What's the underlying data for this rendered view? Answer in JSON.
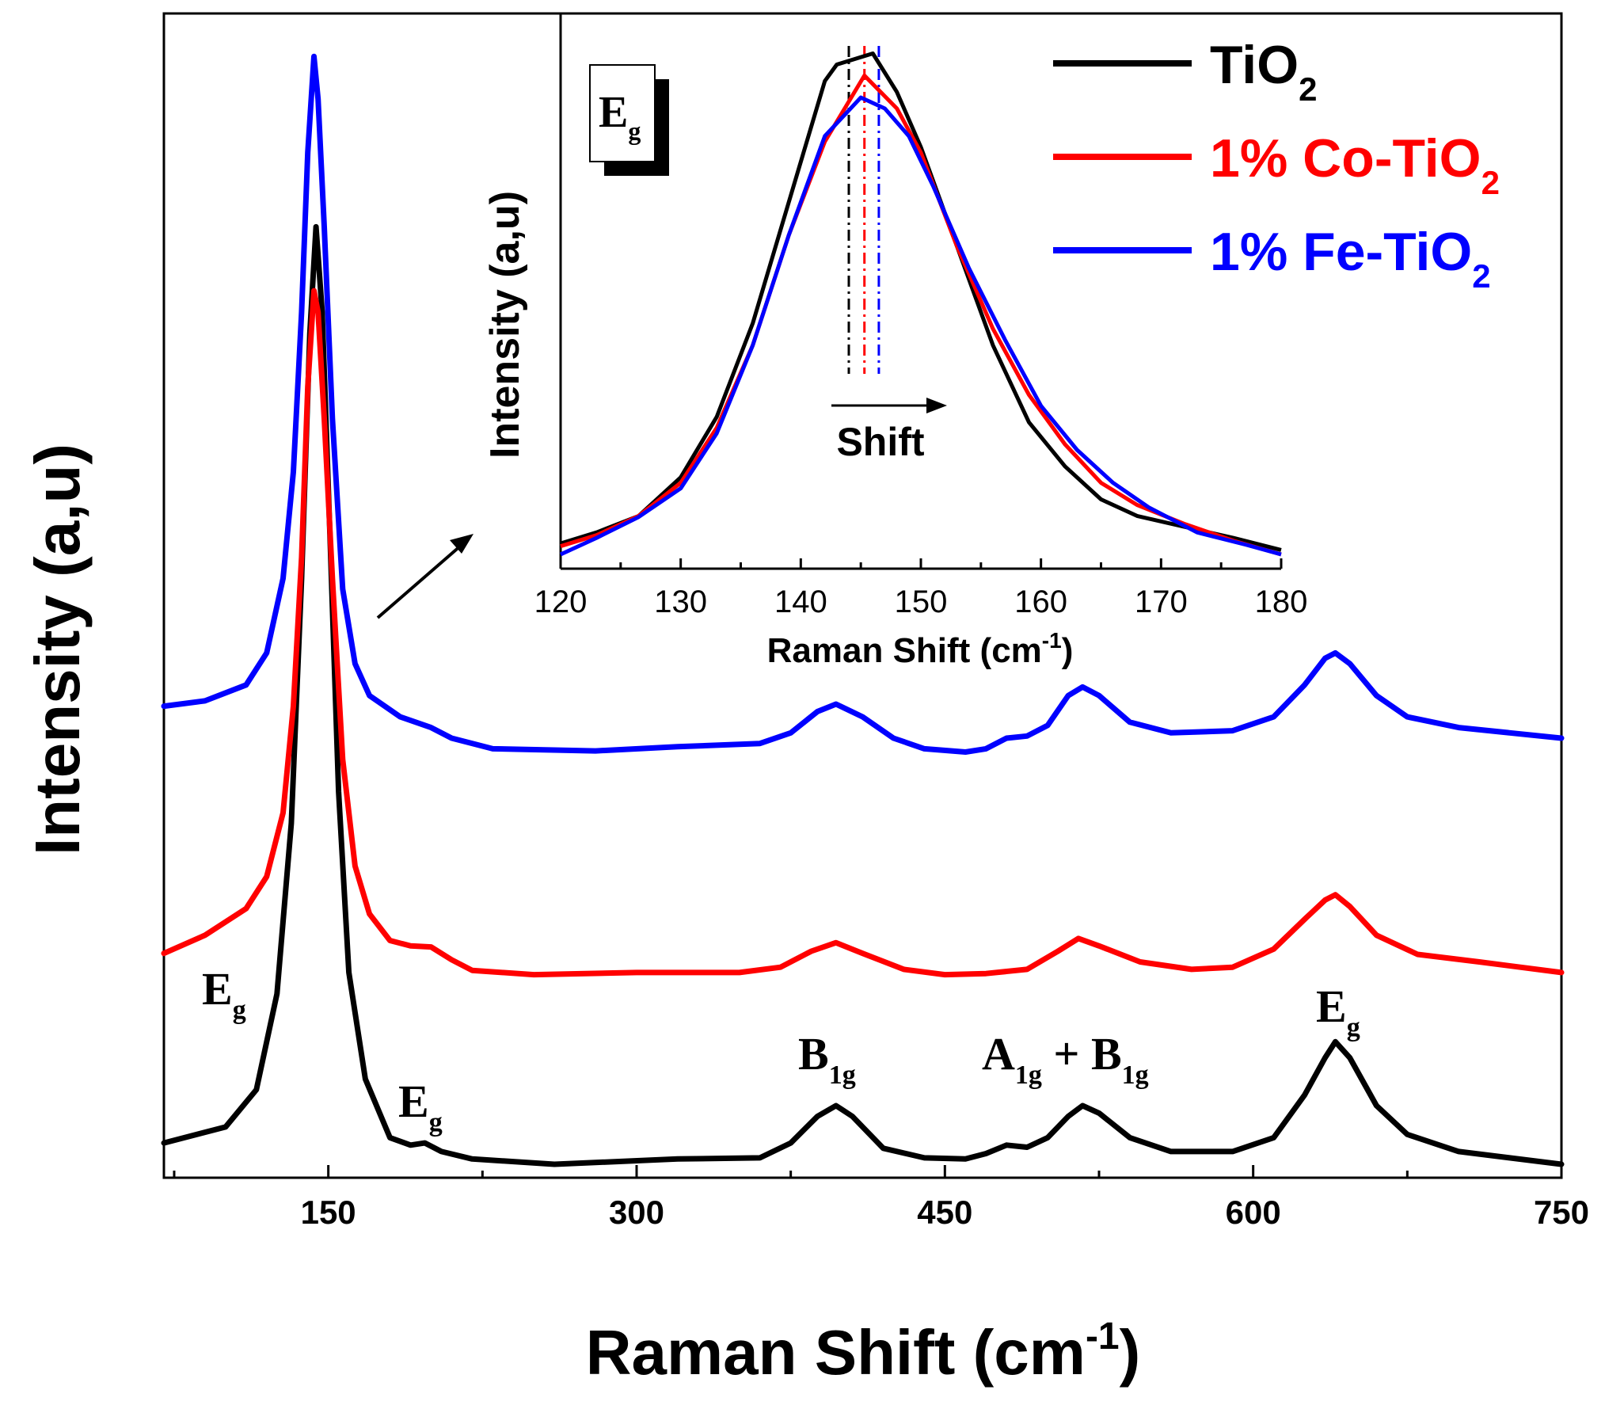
{
  "chart_data": [
    {
      "type": "line",
      "xlabel": "Raman Shift (cm",
      "xlabel_sup": "-1",
      "xlabel_end": ")",
      "ylabel": "Intensity (a,u)",
      "xlim": [
        70,
        750
      ],
      "xticks": [
        150,
        300,
        450,
        600,
        750
      ],
      "x_minor_step": 75,
      "yticks": [],
      "grid": false,
      "legend": {
        "position": "top-right",
        "entries": [
          {
            "base": "TiO",
            "sub": "2",
            "color": "#000000"
          },
          {
            "base": "1% Co-TiO",
            "sub": "2",
            "color": "#ff0000"
          },
          {
            "base": "1% Fe-TiO",
            "sub": "2",
            "color": "#0000ff"
          }
        ]
      },
      "annotations": [
        {
          "base": "E",
          "sub": "g",
          "x": 110
        },
        {
          "base": "E",
          "sub": "g",
          "x": 197
        },
        {
          "base": "B",
          "sub": "1g",
          "x": 397
        },
        {
          "base": "A",
          "sub": "1g",
          "mid": " + B",
          "sub2": "1g",
          "x": 515
        },
        {
          "base": "E",
          "sub": "g",
          "x": 640
        }
      ],
      "series": [
        {
          "color": "#000000",
          "points": [
            [
              70,
              0.02
            ],
            [
              100,
              0.035
            ],
            [
              115,
              0.07
            ],
            [
              125,
              0.16
            ],
            [
              132,
              0.32
            ],
            [
              137,
              0.55
            ],
            [
              141,
              0.78
            ],
            [
              144,
              0.88
            ],
            [
              147,
              0.8
            ],
            [
              151,
              0.58
            ],
            [
              155,
              0.35
            ],
            [
              160,
              0.18
            ],
            [
              168,
              0.08
            ],
            [
              180,
              0.025
            ],
            [
              190,
              0.018
            ],
            [
              197,
              0.02
            ],
            [
              205,
              0.012
            ],
            [
              220,
              0.005
            ],
            [
              260,
              0.0
            ],
            [
              320,
              0.005
            ],
            [
              360,
              0.006
            ],
            [
              375,
              0.02
            ],
            [
              388,
              0.045
            ],
            [
              397,
              0.055
            ],
            [
              405,
              0.045
            ],
            [
              420,
              0.015
            ],
            [
              440,
              0.006
            ],
            [
              460,
              0.005
            ],
            [
              470,
              0.01
            ],
            [
              480,
              0.018
            ],
            [
              490,
              0.016
            ],
            [
              500,
              0.025
            ],
            [
              510,
              0.045
            ],
            [
              517,
              0.055
            ],
            [
              525,
              0.048
            ],
            [
              540,
              0.025
            ],
            [
              560,
              0.012
            ],
            [
              590,
              0.012
            ],
            [
              610,
              0.025
            ],
            [
              625,
              0.065
            ],
            [
              635,
              0.1
            ],
            [
              640,
              0.115
            ],
            [
              647,
              0.1
            ],
            [
              660,
              0.055
            ],
            [
              675,
              0.028
            ],
            [
              700,
              0.012
            ],
            [
              750,
              0.0
            ]
          ]
        },
        {
          "color": "#ff0000",
          "points": [
            [
              70,
              0.198
            ],
            [
              90,
              0.215
            ],
            [
              110,
              0.24
            ],
            [
              120,
              0.27
            ],
            [
              128,
              0.33
            ],
            [
              133,
              0.43
            ],
            [
              137,
              0.57
            ],
            [
              140,
              0.73
            ],
            [
              143,
              0.82
            ],
            [
              145,
              0.8
            ],
            [
              148,
              0.7
            ],
            [
              152,
              0.55
            ],
            [
              157,
              0.38
            ],
            [
              163,
              0.28
            ],
            [
              170,
              0.235
            ],
            [
              180,
              0.21
            ],
            [
              190,
              0.205
            ],
            [
              200,
              0.204
            ],
            [
              210,
              0.192
            ],
            [
              220,
              0.182
            ],
            [
              250,
              0.178
            ],
            [
              300,
              0.18
            ],
            [
              350,
              0.18
            ],
            [
              370,
              0.185
            ],
            [
              385,
              0.2
            ],
            [
              397,
              0.208
            ],
            [
              410,
              0.198
            ],
            [
              430,
              0.183
            ],
            [
              450,
              0.178
            ],
            [
              470,
              0.179
            ],
            [
              490,
              0.183
            ],
            [
              505,
              0.2
            ],
            [
              515,
              0.212
            ],
            [
              525,
              0.205
            ],
            [
              545,
              0.19
            ],
            [
              570,
              0.183
            ],
            [
              590,
              0.185
            ],
            [
              610,
              0.202
            ],
            [
              625,
              0.23
            ],
            [
              635,
              0.248
            ],
            [
              640,
              0.253
            ],
            [
              647,
              0.242
            ],
            [
              660,
              0.215
            ],
            [
              680,
              0.197
            ],
            [
              710,
              0.19
            ],
            [
              750,
              0.18
            ]
          ]
        },
        {
          "color": "#0000ff",
          "points": [
            [
              70,
              0.43
            ],
            [
              90,
              0.435
            ],
            [
              110,
              0.45
            ],
            [
              120,
              0.48
            ],
            [
              128,
              0.55
            ],
            [
              133,
              0.65
            ],
            [
              137,
              0.8
            ],
            [
              140,
              0.95
            ],
            [
              143,
              1.04
            ],
            [
              145,
              1.0
            ],
            [
              148,
              0.88
            ],
            [
              152,
              0.7
            ],
            [
              157,
              0.54
            ],
            [
              163,
              0.47
            ],
            [
              170,
              0.44
            ],
            [
              185,
              0.42
            ],
            [
              200,
              0.41
            ],
            [
              210,
              0.4
            ],
            [
              230,
              0.39
            ],
            [
              280,
              0.388
            ],
            [
              320,
              0.392
            ],
            [
              360,
              0.395
            ],
            [
              375,
              0.405
            ],
            [
              388,
              0.425
            ],
            [
              397,
              0.432
            ],
            [
              410,
              0.42
            ],
            [
              425,
              0.4
            ],
            [
              440,
              0.39
            ],
            [
              460,
              0.387
            ],
            [
              470,
              0.39
            ],
            [
              480,
              0.4
            ],
            [
              490,
              0.402
            ],
            [
              500,
              0.412
            ],
            [
              510,
              0.44
            ],
            [
              517,
              0.448
            ],
            [
              525,
              0.44
            ],
            [
              540,
              0.415
            ],
            [
              560,
              0.405
            ],
            [
              590,
              0.407
            ],
            [
              610,
              0.42
            ],
            [
              625,
              0.45
            ],
            [
              635,
              0.475
            ],
            [
              640,
              0.48
            ],
            [
              647,
              0.47
            ],
            [
              660,
              0.44
            ],
            [
              675,
              0.42
            ],
            [
              700,
              0.41
            ],
            [
              750,
              0.4
            ]
          ]
        }
      ]
    },
    {
      "type": "line",
      "inset": true,
      "label_base": "E",
      "label_sub": "g",
      "xlabel": "Raman Shift (cm",
      "xlabel_sup": "-1",
      "xlabel_end": ")",
      "ylabel": "Intensity (a,u)",
      "xlim": [
        120,
        180
      ],
      "xticks": [
        120,
        130,
        140,
        150,
        160,
        170,
        180
      ],
      "yticks": [],
      "annotation": "Shift",
      "peak_markers": [
        {
          "x": 144.0,
          "color": "#000000"
        },
        {
          "x": 145.3,
          "color": "#ff0000"
        },
        {
          "x": 146.5,
          "color": "#0000ff"
        }
      ],
      "series": [
        {
          "color": "#000000",
          "points": [
            [
              120,
              0.02
            ],
            [
              123,
              0.04
            ],
            [
              126.5,
              0.07
            ],
            [
              130,
              0.14
            ],
            [
              133,
              0.25
            ],
            [
              136,
              0.42
            ],
            [
              139,
              0.64
            ],
            [
              142,
              0.86
            ],
            [
              143,
              0.89
            ],
            [
              146,
              0.91
            ],
            [
              148,
              0.84
            ],
            [
              150,
              0.74
            ],
            [
              153,
              0.56
            ],
            [
              156,
              0.38
            ],
            [
              159,
              0.24
            ],
            [
              162,
              0.16
            ],
            [
              165,
              0.1
            ],
            [
              168,
              0.07
            ],
            [
              172,
              0.05
            ],
            [
              176,
              0.03
            ],
            [
              180,
              0.008
            ]
          ]
        },
        {
          "color": "#ff0000",
          "points": [
            [
              120,
              0.015
            ],
            [
              123,
              0.035
            ],
            [
              126.5,
              0.07
            ],
            [
              130,
              0.13
            ],
            [
              133,
              0.23
            ],
            [
              136,
              0.38
            ],
            [
              139,
              0.58
            ],
            [
              142,
              0.75
            ],
            [
              145.3,
              0.87
            ],
            [
              148,
              0.81
            ],
            [
              150,
              0.73
            ],
            [
              153,
              0.56
            ],
            [
              156,
              0.41
            ],
            [
              159,
              0.29
            ],
            [
              162,
              0.2
            ],
            [
              165,
              0.13
            ],
            [
              168,
              0.09
            ],
            [
              172,
              0.055
            ],
            [
              176,
              0.025
            ],
            [
              180,
              0.0
            ]
          ]
        },
        {
          "color": "#0000ff",
          "points": [
            [
              120,
              0.0
            ],
            [
              123,
              0.03
            ],
            [
              126.5,
              0.068
            ],
            [
              130,
              0.12
            ],
            [
              133,
              0.22
            ],
            [
              136,
              0.38
            ],
            [
              139,
              0.58
            ],
            [
              142,
              0.76
            ],
            [
              145,
              0.83
            ],
            [
              147,
              0.81
            ],
            [
              149,
              0.76
            ],
            [
              151,
              0.67
            ],
            [
              154,
              0.52
            ],
            [
              157,
              0.39
            ],
            [
              160,
              0.27
            ],
            [
              163,
              0.19
            ],
            [
              166,
              0.13
            ],
            [
              169,
              0.085
            ],
            [
              173,
              0.04
            ],
            [
              177,
              0.018
            ],
            [
              180,
              0.0
            ]
          ]
        }
      ]
    }
  ]
}
